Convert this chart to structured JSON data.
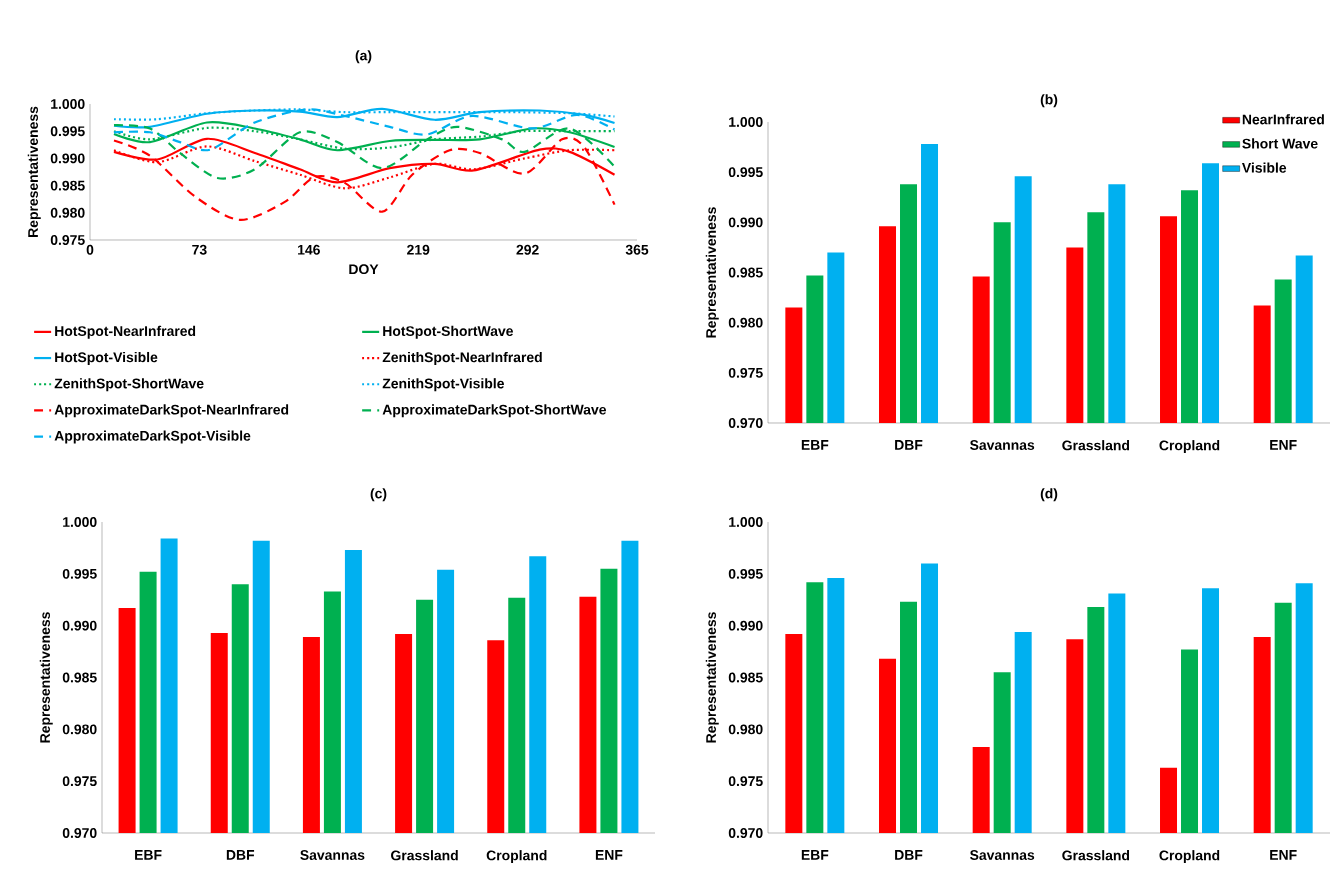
{
  "chart_data": [
    {
      "type": "line",
      "title": "(a)",
      "xlabel": "DOY",
      "ylabel": "Representativeness",
      "xlim": [
        0,
        365
      ],
      "xticks": [
        0,
        73,
        146,
        219,
        292,
        365
      ],
      "ylim": [
        0.975,
        1.0
      ],
      "yticks": [
        {
          "value": 0.975,
          "label": "0.975"
        },
        {
          "value": 0.98,
          "label": "0.980"
        },
        {
          "value": 0.985,
          "label": "0.985"
        },
        {
          "value": 0.99,
          "label": "0.990"
        },
        {
          "value": 0.995,
          "label": "0.995"
        },
        {
          "value": 1.0,
          "label": "1.000"
        }
      ],
      "legend": "bottom",
      "series": [
        {
          "name": "HotSpot-NearInfrared",
          "color": "#ff0000",
          "line_style": "solid",
          "x": [
            16,
            45,
            78,
            110,
            140,
            165,
            200,
            230,
            256,
            300,
            320,
            350
          ],
          "values": [
            0.9912,
            0.9898,
            0.9936,
            0.991,
            0.988,
            0.9856,
            0.9882,
            0.989,
            0.9878,
            0.9916,
            0.9912,
            0.987
          ]
        },
        {
          "name": "HotSpot-ShortWave",
          "color": "#00b050",
          "line_style": "solid",
          "x": [
            16,
            40,
            78,
            110,
            140,
            165,
            200,
            230,
            260,
            295,
            320,
            350
          ],
          "values": [
            0.9945,
            0.993,
            0.9966,
            0.9955,
            0.9935,
            0.9915,
            0.9932,
            0.9934,
            0.9935,
            0.9955,
            0.9948,
            0.9921
          ]
        },
        {
          "name": "HotSpot-Visible",
          "color": "#00b0f0",
          "line_style": "solid",
          "x": [
            16,
            40,
            78,
            110,
            140,
            165,
            195,
            230,
            260,
            300,
            330,
            350
          ],
          "values": [
            0.996,
            0.9958,
            0.9982,
            0.9988,
            0.9986,
            0.9976,
            0.9991,
            0.9971,
            0.9985,
            0.9988,
            0.998,
            0.9965
          ]
        },
        {
          "name": "ZenithSpot-NearInfrared",
          "color": "#ff0000",
          "line_style": "dotted",
          "x": [
            16,
            45,
            78,
            110,
            140,
            170,
            200,
            230,
            256,
            290,
            320,
            350
          ],
          "values": [
            0.9915,
            0.9893,
            0.9922,
            0.9895,
            0.987,
            0.9845,
            0.9865,
            0.989,
            0.988,
            0.99,
            0.9915,
            0.9915
          ]
        },
        {
          "name": "ZenithSpot-ShortWave",
          "color": "#00b050",
          "line_style": "dotted",
          "x": [
            16,
            40,
            78,
            110,
            140,
            170,
            200,
            230,
            260,
            290,
            320,
            350
          ],
          "values": [
            0.995,
            0.9935,
            0.9956,
            0.995,
            0.9935,
            0.9918,
            0.992,
            0.9935,
            0.994,
            0.995,
            0.995,
            0.995
          ]
        },
        {
          "name": "ZenithSpot-Visible",
          "color": "#00b0f0",
          "line_style": "dotted",
          "x": [
            16,
            45,
            78,
            110,
            140,
            170,
            200,
            240,
            280,
            320,
            350
          ],
          "values": [
            0.9972,
            0.9972,
            0.9983,
            0.9988,
            0.999,
            0.9985,
            0.9985,
            0.9985,
            0.9985,
            0.9983,
            0.9977
          ]
        },
        {
          "name": "ApproximateDarkSpot-NearInfrared",
          "color": "#ff0000",
          "line_style": "dashed",
          "x": [
            16,
            40,
            70,
            100,
            130,
            150,
            170,
            195,
            215,
            240,
            260,
            290,
            315,
            330,
            350
          ],
          "values": [
            0.9933,
            0.9905,
            0.983,
            0.9787,
            0.982,
            0.9866,
            0.9855,
            0.9802,
            0.987,
            0.9915,
            0.991,
            0.9872,
            0.9935,
            0.992,
            0.9815
          ]
        },
        {
          "name": "ApproximateDarkSpot-ShortWave",
          "color": "#00b050",
          "line_style": "dashed",
          "x": [
            16,
            40,
            60,
            85,
            110,
            140,
            165,
            195,
            225,
            245,
            275,
            290,
            320,
            350
          ],
          "values": [
            0.9961,
            0.9955,
            0.991,
            0.9864,
            0.988,
            0.9948,
            0.993,
            0.9882,
            0.9935,
            0.9958,
            0.9935,
            0.9912,
            0.9955,
            0.9885
          ]
        },
        {
          "name": "ApproximateDarkSpot-Visible",
          "color": "#00b0f0",
          "line_style": "dashed",
          "x": [
            16,
            40,
            60,
            80,
            110,
            145,
            170,
            200,
            225,
            255,
            295,
            325,
            350
          ],
          "values": [
            0.9948,
            0.9948,
            0.993,
            0.9916,
            0.9966,
            0.999,
            0.9978,
            0.9958,
            0.9944,
            0.9978,
            0.9955,
            0.998,
            0.9953
          ]
        }
      ]
    },
    {
      "type": "bar",
      "title": "(b)",
      "ylabel": "Representativeness",
      "categories": [
        "EBF",
        "DBF",
        "Savannas",
        "Grassland",
        "Cropland",
        "ENF"
      ],
      "ylim": [
        0.97,
        1.0
      ],
      "yticks": [
        {
          "value": 0.97,
          "label": "0.970"
        },
        {
          "value": 0.975,
          "label": "0.975"
        },
        {
          "value": 0.98,
          "label": "0.980"
        },
        {
          "value": 0.985,
          "label": "0.985"
        },
        {
          "value": 0.99,
          "label": "0.990"
        },
        {
          "value": 0.995,
          "label": "0.995"
        },
        {
          "value": 1.0,
          "label": "1.000"
        }
      ],
      "legend": "top right",
      "series": [
        {
          "name": "NearInfrared",
          "color": "#ff0000",
          "values": [
            0.9815,
            0.9896,
            0.9846,
            0.9875,
            0.9906,
            0.9817
          ]
        },
        {
          "name": "Short Wave",
          "color": "#00b050",
          "values": [
            0.9847,
            0.9938,
            0.99,
            0.991,
            0.9932,
            0.9843
          ]
        },
        {
          "name": "Visible",
          "color": "#00b0f0",
          "values": [
            0.987,
            0.9978,
            0.9946,
            0.9938,
            0.9959,
            0.9867
          ]
        }
      ]
    },
    {
      "type": "bar",
      "title": "(c)",
      "ylabel": "Representativeness",
      "categories": [
        "EBF",
        "DBF",
        "Savannas",
        "Grassland",
        "Cropland",
        "ENF"
      ],
      "ylim": [
        0.97,
        1.0
      ],
      "yticks": [
        {
          "value": 0.97,
          "label": "0.970"
        },
        {
          "value": 0.975,
          "label": "0.975"
        },
        {
          "value": 0.98,
          "label": "0.980"
        },
        {
          "value": 0.985,
          "label": "0.985"
        },
        {
          "value": 0.99,
          "label": "0.990"
        },
        {
          "value": 0.995,
          "label": "0.995"
        },
        {
          "value": 1.0,
          "label": "1.000"
        }
      ],
      "series": [
        {
          "color": "#ff0000",
          "values": [
            0.9917,
            0.9893,
            0.9889,
            0.9892,
            0.9886,
            0.9928
          ]
        },
        {
          "color": "#00b050",
          "values": [
            0.9952,
            0.994,
            0.9933,
            0.9925,
            0.9927,
            0.9955
          ]
        },
        {
          "color": "#00b0f0",
          "values": [
            0.9984,
            0.9982,
            0.9973,
            0.9954,
            0.9967,
            0.9982
          ]
        }
      ]
    },
    {
      "type": "bar",
      "title": "(d)",
      "ylabel": "Representativeness",
      "categories": [
        "EBF",
        "DBF",
        "Savannas",
        "Grassland",
        "Cropland",
        "ENF"
      ],
      "ylim": [
        0.97,
        1.0
      ],
      "yticks": [
        {
          "value": 0.97,
          "label": "0.970"
        },
        {
          "value": 0.975,
          "label": "0.975"
        },
        {
          "value": 0.98,
          "label": "0.980"
        },
        {
          "value": 0.985,
          "label": "0.985"
        },
        {
          "value": 0.99,
          "label": "0.990"
        },
        {
          "value": 0.995,
          "label": "0.995"
        },
        {
          "value": 1.0,
          "label": "1.000"
        }
      ],
      "series": [
        {
          "color": "#ff0000",
          "values": [
            0.9892,
            0.9868,
            0.9783,
            0.9887,
            0.9763,
            0.9889
          ]
        },
        {
          "color": "#00b050",
          "values": [
            0.9942,
            0.9923,
            0.9855,
            0.9918,
            0.9877,
            0.9922
          ]
        },
        {
          "color": "#00b0f0",
          "values": [
            0.9946,
            0.996,
            0.9894,
            0.9931,
            0.9936,
            0.9941
          ]
        }
      ]
    }
  ]
}
